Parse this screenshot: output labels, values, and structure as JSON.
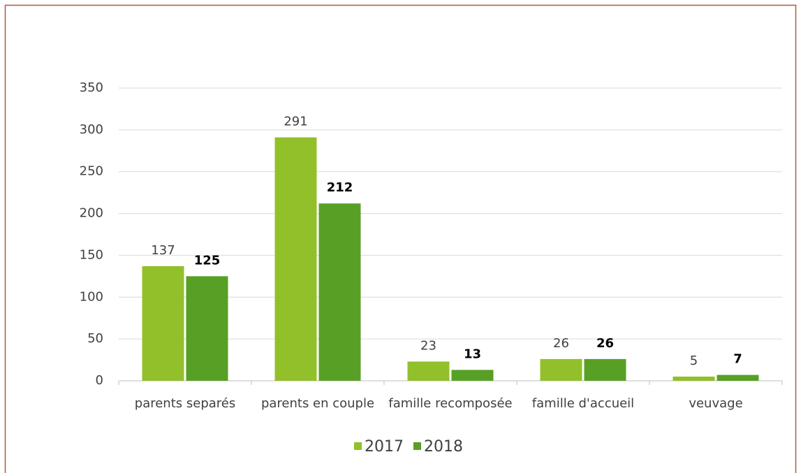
{
  "chart_data": {
    "type": "bar",
    "categories": [
      "parents separés",
      "parents en couple",
      "famille recomposée",
      "famille d'accueil",
      "veuvage"
    ],
    "series": [
      {
        "name": "2017",
        "color": "#92c02a",
        "values": [
          137,
          291,
          23,
          26,
          5
        ]
      },
      {
        "name": "2018",
        "color": "#57a025",
        "values": [
          125,
          212,
          13,
          26,
          7
        ]
      }
    ],
    "ylim": [
      0,
      350
    ],
    "yticks": [
      0,
      50,
      100,
      150,
      200,
      250,
      300,
      350
    ],
    "grid": true,
    "legend": "bottom"
  }
}
